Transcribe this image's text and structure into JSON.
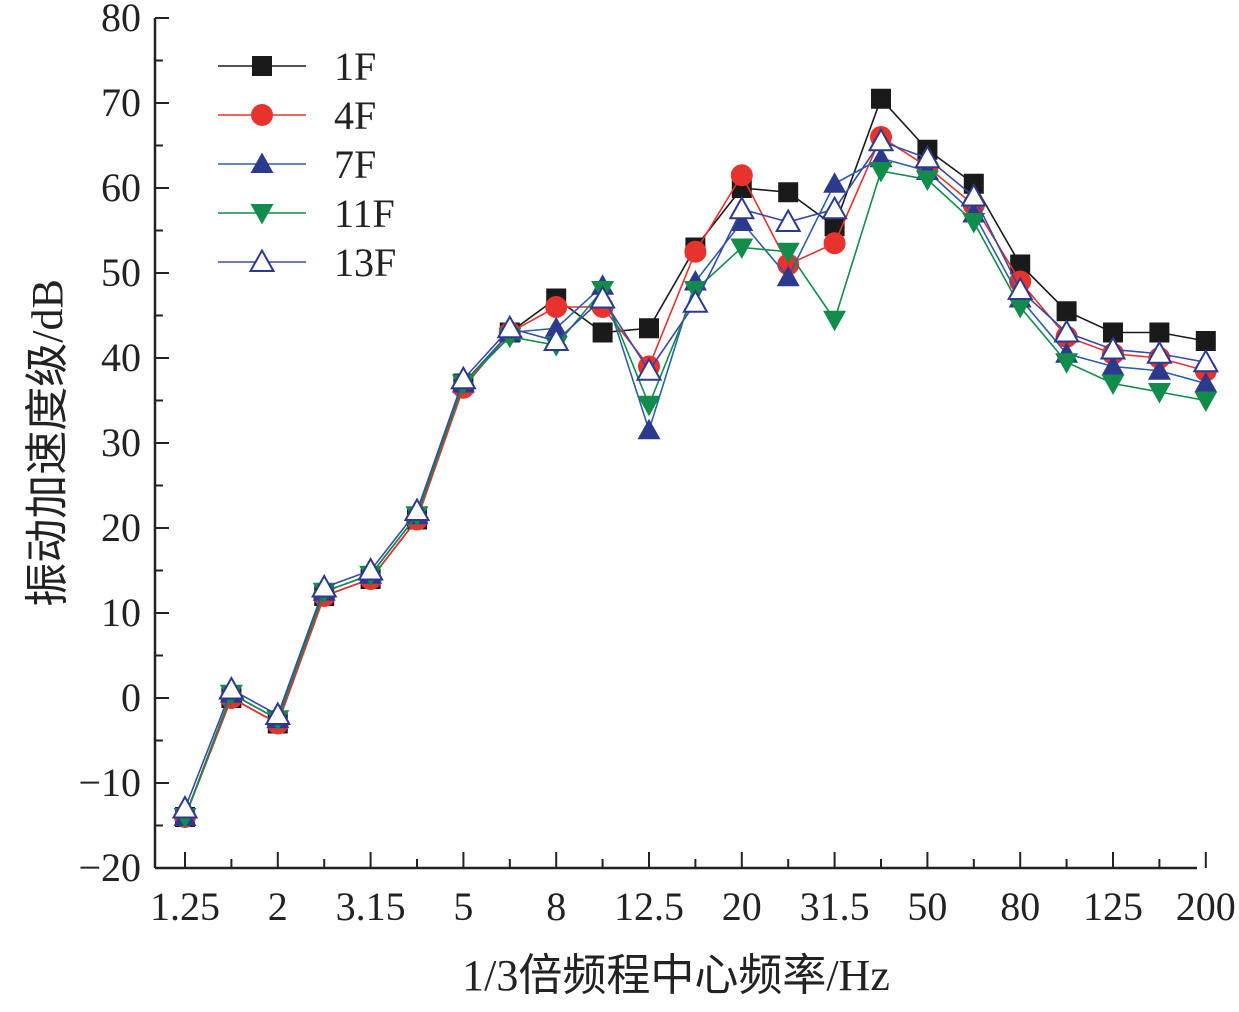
{
  "chart_data": {
    "type": "line",
    "xlabel": "1/3倍频程中心频率/Hz",
    "ylabel": "振动加速度级/dB",
    "ylim": [
      -20,
      80
    ],
    "yticks": [
      -20,
      -10,
      0,
      10,
      20,
      30,
      40,
      50,
      60,
      70,
      80
    ],
    "categories": [
      "1.25",
      "1.6",
      "2",
      "2.5",
      "3.15",
      "4",
      "5",
      "6.3",
      "8",
      "10",
      "12.5",
      "16",
      "20",
      "25",
      "31.5",
      "40",
      "50",
      "63",
      "80",
      "100",
      "125",
      "160",
      "200"
    ],
    "xtick_labels": [
      "1.25",
      "2",
      "3.15",
      "5",
      "8",
      "12.5",
      "20",
      "31.5",
      "50",
      "80",
      "125",
      "200"
    ],
    "legend_position": "top-left",
    "grid": false,
    "series": [
      {
        "name": "1F",
        "marker": "square",
        "color": "#1a1a1a",
        "line_color": "#1a1a1a",
        "values": [
          -14,
          0,
          -3,
          12,
          14,
          21,
          37,
          43,
          47,
          43,
          43.5,
          53,
          60,
          59.5,
          55.5,
          70.5,
          64.5,
          60.5,
          51,
          45.5,
          43,
          43,
          42
        ]
      },
      {
        "name": "4F",
        "marker": "circle",
        "color": "#e8322e",
        "line_color": "#e8322e",
        "values": [
          -14,
          0,
          -3,
          12,
          14,
          21,
          36.5,
          43,
          46,
          46,
          39,
          52.5,
          61.5,
          51,
          53.5,
          66,
          62.5,
          58,
          49,
          42.5,
          40.5,
          40,
          38.5
        ]
      },
      {
        "name": "7F",
        "marker": "triangle-up",
        "color": "#2b3a8c",
        "line_color": "#2b5fa8",
        "values": [
          -14,
          0.5,
          -2.5,
          12.5,
          14.5,
          21.5,
          37,
          43,
          43.5,
          48.5,
          31.5,
          49,
          56,
          49.5,
          60.5,
          63.5,
          62,
          57,
          47,
          40.5,
          39,
          38.5,
          37
        ]
      },
      {
        "name": "11F",
        "marker": "triangle-down",
        "color": "#128c4a",
        "line_color": "#128c4a",
        "values": [
          -14,
          0.5,
          -2.5,
          12.5,
          14.5,
          21.5,
          37,
          42.5,
          41.5,
          48,
          34.5,
          48,
          53,
          52.5,
          44.5,
          62,
          61,
          56,
          46,
          39.5,
          37,
          36,
          35
        ]
      },
      {
        "name": "13F",
        "marker": "triangle-up-open",
        "color": "#2b3a8c",
        "line_color": "#3a4aa0",
        "values": [
          -13,
          1,
          -2,
          13,
          15,
          22,
          37.5,
          43.5,
          42,
          47,
          38.5,
          46.5,
          57.5,
          56,
          57.5,
          65.5,
          63.5,
          59,
          48,
          43,
          41,
          40.5,
          39.5
        ]
      }
    ]
  }
}
